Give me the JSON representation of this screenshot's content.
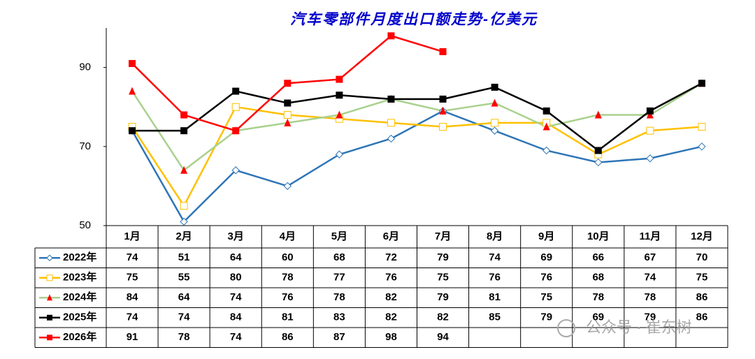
{
  "chart_data": {
    "type": "line",
    "title": "汽车零部件月度出口额走势-亿美元",
    "categories": [
      "1月",
      "2月",
      "3月",
      "4月",
      "5月",
      "6月",
      "7月",
      "8月",
      "9月",
      "10月",
      "11月",
      "12月"
    ],
    "ylim": [
      50,
      100
    ],
    "yticks": [
      50,
      70,
      90
    ],
    "grid": false,
    "legend": "bottom-table",
    "series": [
      {
        "name": "2022年",
        "color": "#2e75b6",
        "marker": "diamond-open",
        "marker_color": "#2e75b6",
        "values": [
          74,
          51,
          64,
          60,
          68,
          72,
          79,
          74,
          69,
          66,
          67,
          70
        ]
      },
      {
        "name": "2023年",
        "color": "#ffc000",
        "marker": "square-open",
        "marker_color": "#ffc000",
        "values": [
          75,
          55,
          80,
          78,
          77,
          76,
          75,
          76,
          76,
          68,
          74,
          75
        ]
      },
      {
        "name": "2024年",
        "color": "#a9d18e",
        "marker": "triangle",
        "marker_color": "#ff0000",
        "values": [
          84,
          64,
          74,
          76,
          78,
          82,
          79,
          81,
          75,
          78,
          78,
          86
        ]
      },
      {
        "name": "2025年",
        "color": "#000000",
        "marker": "square",
        "marker_color": "#000000",
        "values": [
          74,
          74,
          84,
          81,
          83,
          82,
          82,
          85,
          79,
          69,
          79,
          86
        ]
      },
      {
        "name": "2026年",
        "color": "#ff0000",
        "marker": "square",
        "marker_color": "#ff0000",
        "values": [
          91,
          78,
          74,
          86,
          87,
          98,
          94,
          null,
          null,
          null,
          null,
          null
        ]
      }
    ],
    "watermark": "公众号 · 崔东树"
  }
}
